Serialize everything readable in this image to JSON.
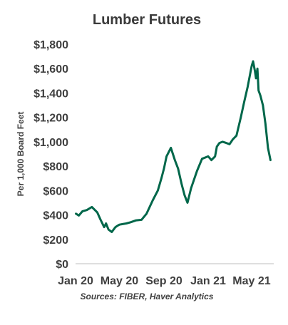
{
  "chart_data": {
    "type": "line",
    "title": "Lumber Futures",
    "ylabel": "Per 1,000 Board Feet",
    "xlabel": "",
    "source": "Sources: FIBER, Haver Analytics",
    "ylim": [
      0,
      1800
    ],
    "yticks": [
      0,
      200,
      400,
      600,
      800,
      1000,
      1200,
      1400,
      1600,
      1800
    ],
    "ytick_labels": [
      "$0",
      "$200",
      "$400",
      "$600",
      "$800",
      "$1,000",
      "$1,200",
      "$1,400",
      "$1,600",
      "$1,800"
    ],
    "xlim": [
      "2020-01-01",
      "2021-07-01"
    ],
    "xticks": [
      "2020-01-01",
      "2020-05-01",
      "2020-09-01",
      "2021-01-01",
      "2021-05-01"
    ],
    "xtick_labels": [
      "Jan 20",
      "May 20",
      "Sep 20",
      "Jan 21",
      "May 21"
    ],
    "grid": false,
    "line_color": "#00674a",
    "series": [
      {
        "x": [
          "2020-01-02",
          "2020-01-10",
          "2020-01-20",
          "2020-02-01",
          "2020-02-15",
          "2020-03-01",
          "2020-03-10",
          "2020-03-20",
          "2020-03-25",
          "2020-04-01",
          "2020-04-10",
          "2020-04-20",
          "2020-04-25",
          "2020-05-01",
          "2020-05-10",
          "2020-05-20",
          "2020-06-01",
          "2020-06-15",
          "2020-07-01",
          "2020-07-15",
          "2020-08-01",
          "2020-08-15",
          "2020-08-25",
          "2020-09-01",
          "2020-09-08",
          "2020-09-15",
          "2020-09-20",
          "2020-10-01",
          "2020-10-10",
          "2020-10-20",
          "2020-10-28",
          "2020-11-05",
          "2020-11-15",
          "2020-12-01",
          "2020-12-15",
          "2021-01-01",
          "2021-01-10",
          "2021-01-20",
          "2021-01-25",
          "2021-02-01",
          "2021-02-10",
          "2021-02-20",
          "2021-03-01",
          "2021-03-10",
          "2021-03-20",
          "2021-04-01",
          "2021-04-10",
          "2021-04-20",
          "2021-05-01",
          "2021-05-05",
          "2021-05-10",
          "2021-05-13",
          "2021-05-17",
          "2021-05-20",
          "2021-05-25",
          "2021-06-01",
          "2021-06-08",
          "2021-06-15",
          "2021-06-22"
        ],
        "values": [
          410,
          395,
          430,
          440,
          465,
          420,
          360,
          300,
          330,
          280,
          260,
          300,
          310,
          320,
          325,
          330,
          340,
          355,
          360,
          410,
          520,
          600,
          700,
          780,
          880,
          920,
          950,
          850,
          780,
          650,
          560,
          500,
          620,
          760,
          860,
          880,
          850,
          880,
          960,
          990,
          1000,
          990,
          980,
          1020,
          1050,
          1200,
          1320,
          1450,
          1620,
          1660,
          1580,
          1520,
          1600,
          1420,
          1380,
          1300,
          1150,
          950,
          850
        ]
      }
    ]
  }
}
